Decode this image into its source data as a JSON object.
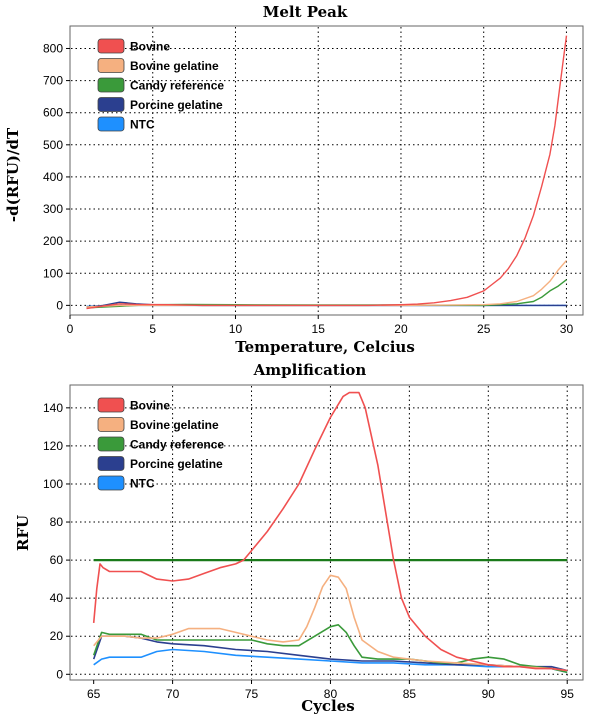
{
  "chart_data": [
    {
      "type": "line",
      "title": "Melt Peak",
      "xlabel": "Temperature, Celcius",
      "ylabel": "-d(RFU)/dT",
      "xlim": [
        0,
        31
      ],
      "ylim": [
        -30,
        870
      ],
      "xticks": [
        0,
        5,
        10,
        15,
        20,
        25,
        30
      ],
      "yticks": [
        0,
        100,
        200,
        300,
        400,
        500,
        600,
        700,
        800
      ],
      "grid": true,
      "legend_position": "top-left",
      "series": [
        {
          "name": "Bovine",
          "color": "#f05050",
          "points": [
            [
              1,
              -10
            ],
            [
              2,
              -2
            ],
            [
              3,
              5
            ],
            [
              4,
              3
            ],
            [
              6,
              2
            ],
            [
              8,
              0
            ],
            [
              10,
              0
            ],
            [
              12,
              0
            ],
            [
              14,
              0
            ],
            [
              16,
              0
            ],
            [
              18,
              0
            ],
            [
              20,
              2
            ],
            [
              21,
              4
            ],
            [
              22,
              8
            ],
            [
              23,
              15
            ],
            [
              24,
              25
            ],
            [
              25,
              45
            ],
            [
              25.5,
              65
            ],
            [
              26,
              85
            ],
            [
              26.5,
              115
            ],
            [
              27,
              155
            ],
            [
              27.5,
              210
            ],
            [
              28,
              280
            ],
            [
              28.5,
              370
            ],
            [
              29,
              470
            ],
            [
              29.3,
              560
            ],
            [
              29.6,
              680
            ],
            [
              29.8,
              760
            ],
            [
              30,
              840
            ]
          ]
        },
        {
          "name": "Bovine gelatine",
          "color": "#f5b080",
          "points": [
            [
              1,
              -5
            ],
            [
              3,
              0
            ],
            [
              6,
              0
            ],
            [
              10,
              0
            ],
            [
              15,
              0
            ],
            [
              20,
              0
            ],
            [
              25,
              2
            ],
            [
              26,
              5
            ],
            [
              27,
              12
            ],
            [
              28,
              30
            ],
            [
              28.5,
              50
            ],
            [
              29,
              75
            ],
            [
              29.5,
              110
            ],
            [
              30,
              140
            ]
          ]
        },
        {
          "name": "Candy reference",
          "color": "#3a9a3a",
          "points": [
            [
              1,
              -8
            ],
            [
              2,
              -5
            ],
            [
              3,
              -3
            ],
            [
              4,
              0
            ],
            [
              5,
              2
            ],
            [
              7,
              3
            ],
            [
              10,
              2
            ],
            [
              15,
              1
            ],
            [
              20,
              1
            ],
            [
              25,
              0
            ],
            [
              26,
              2
            ],
            [
              27,
              5
            ],
            [
              28,
              12
            ],
            [
              28.5,
              25
            ],
            [
              29,
              45
            ],
            [
              29.5,
              60
            ],
            [
              30,
              80
            ]
          ]
        },
        {
          "name": "Porcine gelatine",
          "color": "#2b3f8f",
          "points": [
            [
              1,
              -5
            ],
            [
              2,
              0
            ],
            [
              3,
              10
            ],
            [
              4,
              5
            ],
            [
              5,
              2
            ],
            [
              8,
              0
            ],
            [
              12,
              0
            ],
            [
              16,
              0
            ],
            [
              20,
              0
            ],
            [
              24,
              0
            ],
            [
              27,
              0
            ],
            [
              30,
              0
            ]
          ]
        },
        {
          "name": "NTC",
          "color": "#1e90ff",
          "points": [
            [
              1,
              -3
            ],
            [
              3,
              0
            ],
            [
              8,
              0
            ],
            [
              15,
              0
            ],
            [
              22,
              0
            ],
            [
              30,
              0
            ]
          ]
        }
      ]
    },
    {
      "type": "line",
      "title": "Amplification",
      "xlabel": "Cycles",
      "ylabel": "RFU",
      "xlim": [
        63.5,
        96
      ],
      "ylim": [
        -3,
        152
      ],
      "xticks": [
        65,
        70,
        75,
        80,
        85,
        90,
        95
      ],
      "yticks": [
        0,
        20,
        40,
        60,
        80,
        100,
        120,
        140
      ],
      "grid": true,
      "legend_position": "top-left",
      "threshold": 60,
      "threshold_color": "#1a7a1a",
      "series": [
        {
          "name": "Bovine",
          "color": "#f05050",
          "points": [
            [
              65,
              27
            ],
            [
              65.2,
              45
            ],
            [
              65.4,
              58
            ],
            [
              65.6,
              56
            ],
            [
              66,
              54
            ],
            [
              67,
              54
            ],
            [
              68,
              54
            ],
            [
              69,
              50
            ],
            [
              70,
              49
            ],
            [
              71,
              50
            ],
            [
              72,
              53
            ],
            [
              73,
              56
            ],
            [
              74,
              58
            ],
            [
              74.5,
              60
            ],
            [
              75,
              65
            ],
            [
              76,
              75
            ],
            [
              77,
              87
            ],
            [
              78,
              100
            ],
            [
              79,
              118
            ],
            [
              80,
              135
            ],
            [
              80.8,
              146
            ],
            [
              81.2,
              148
            ],
            [
              81.8,
              148
            ],
            [
              82.2,
              140
            ],
            [
              83,
              110
            ],
            [
              83.5,
              85
            ],
            [
              84,
              60
            ],
            [
              84.5,
              40
            ],
            [
              85,
              30
            ],
            [
              86,
              20
            ],
            [
              87,
              13
            ],
            [
              88,
              9
            ],
            [
              89,
              7
            ],
            [
              90,
              5
            ],
            [
              91,
              4
            ],
            [
              92,
              4
            ],
            [
              93,
              3
            ],
            [
              94,
              3
            ],
            [
              95,
              2
            ]
          ]
        },
        {
          "name": "Bovine gelatine",
          "color": "#f5b080",
          "points": [
            [
              65,
              15
            ],
            [
              65.5,
              20
            ],
            [
              66,
              20
            ],
            [
              67,
              20
            ],
            [
              68,
              19
            ],
            [
              69,
              19
            ],
            [
              70,
              21
            ],
            [
              71,
              24
            ],
            [
              72,
              24
            ],
            [
              73,
              24
            ],
            [
              74,
              22
            ],
            [
              75,
              20
            ],
            [
              76,
              18
            ],
            [
              77,
              17
            ],
            [
              78,
              18
            ],
            [
              78.5,
              25
            ],
            [
              79,
              35
            ],
            [
              79.5,
              46
            ],
            [
              80,
              52
            ],
            [
              80.5,
              51
            ],
            [
              81,
              45
            ],
            [
              81.5,
              30
            ],
            [
              82,
              18
            ],
            [
              83,
              12
            ],
            [
              84,
              9
            ],
            [
              86,
              7
            ],
            [
              88,
              6
            ],
            [
              90,
              5
            ],
            [
              92,
              4
            ],
            [
              94,
              3
            ],
            [
              95,
              2
            ]
          ]
        },
        {
          "name": "Candy reference",
          "color": "#3a9a3a",
          "points": [
            [
              65,
              10
            ],
            [
              65.5,
              22
            ],
            [
              66,
              21
            ],
            [
              67,
              21
            ],
            [
              68,
              21
            ],
            [
              69,
              18
            ],
            [
              70,
              18
            ],
            [
              71,
              18
            ],
            [
              72,
              18
            ],
            [
              73,
              18
            ],
            [
              75,
              18
            ],
            [
              76,
              16
            ],
            [
              77,
              15
            ],
            [
              78,
              15
            ],
            [
              79,
              20
            ],
            [
              80,
              25
            ],
            [
              80.5,
              26
            ],
            [
              81,
              22
            ],
            [
              81.5,
              15
            ],
            [
              82,
              9
            ],
            [
              83,
              8
            ],
            [
              85,
              8
            ],
            [
              87,
              6
            ],
            [
              88,
              6
            ],
            [
              89,
              8
            ],
            [
              90,
              9
            ],
            [
              91,
              8
            ],
            [
              92,
              5
            ],
            [
              93,
              4
            ],
            [
              94,
              3
            ],
            [
              95,
              1
            ]
          ]
        },
        {
          "name": "Porcine gelatine",
          "color": "#2b3f8f",
          "points": [
            [
              65,
              8
            ],
            [
              65.5,
              20
            ],
            [
              66,
              20
            ],
            [
              67,
              20
            ],
            [
              68,
              19
            ],
            [
              69,
              17
            ],
            [
              70,
              16
            ],
            [
              72,
              15
            ],
            [
              74,
              13
            ],
            [
              76,
              12
            ],
            [
              78,
              10
            ],
            [
              80,
              8
            ],
            [
              82,
              7
            ],
            [
              84,
              7
            ],
            [
              86,
              6
            ],
            [
              88,
              5
            ],
            [
              90,
              5
            ],
            [
              92,
              4
            ],
            [
              94,
              4
            ],
            [
              95,
              2
            ]
          ]
        },
        {
          "name": "NTC",
          "color": "#1e90ff",
          "points": [
            [
              65,
              5
            ],
            [
              65.5,
              8
            ],
            [
              66,
              9
            ],
            [
              67,
              9
            ],
            [
              68,
              9
            ],
            [
              69,
              12
            ],
            [
              70,
              13
            ],
            [
              72,
              12
            ],
            [
              74,
              10
            ],
            [
              76,
              9
            ],
            [
              78,
              8
            ],
            [
              80,
              7
            ],
            [
              82,
              6
            ],
            [
              84,
              6
            ],
            [
              86,
              5
            ],
            [
              88,
              5
            ],
            [
              90,
              4
            ],
            [
              92,
              4
            ],
            [
              94,
              3
            ],
            [
              95,
              1
            ]
          ]
        }
      ]
    }
  ]
}
